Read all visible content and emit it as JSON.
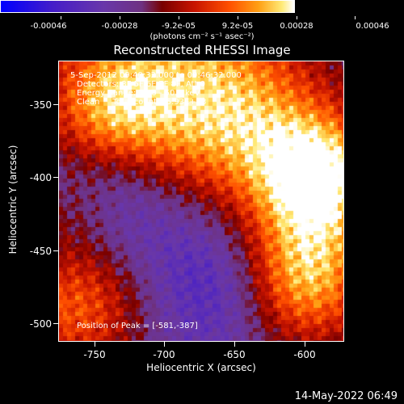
{
  "colorbar": {
    "labels": [
      "-0.00046",
      "-0.00028",
      "-9.2e-05",
      "9.2e-05",
      "0.00028",
      "0.00046"
    ],
    "units": "(photons cm⁻² s⁻¹ asec⁻²)"
  },
  "title": "Reconstructed RHESSI Image",
  "info": {
    "time": "5-Sep-2012 09:40:32.000 to 09:46:32.000",
    "detectors": "Detectors: 3F 5F 6F 7F 8F, Att 0",
    "energy": "Energy Range: 25.0 - 50.0 keV",
    "method": "Clean     Total counts: 5.93E+03",
    "peak": "Position of Peak = [-581,-387]"
  },
  "axes": {
    "xlabel": "Heliocentric X (arcsec)",
    "ylabel": "Heliocentric Y (arcsec)",
    "xticks": [
      "-750",
      "-700",
      "-650",
      "-600"
    ],
    "yticks": [
      "-350",
      "-400",
      "-450",
      "-500"
    ]
  },
  "timestamp": "14-May-2022 06:49",
  "colors": {
    "background": "#000000",
    "colormap": [
      "#0000ff",
      "#5a2aa8",
      "#6e3bb4",
      "#7a3a5a",
      "#8a0000",
      "#c81a00",
      "#ff4a00",
      "#ff9a00",
      "#ffe060",
      "#ffffff"
    ]
  }
}
